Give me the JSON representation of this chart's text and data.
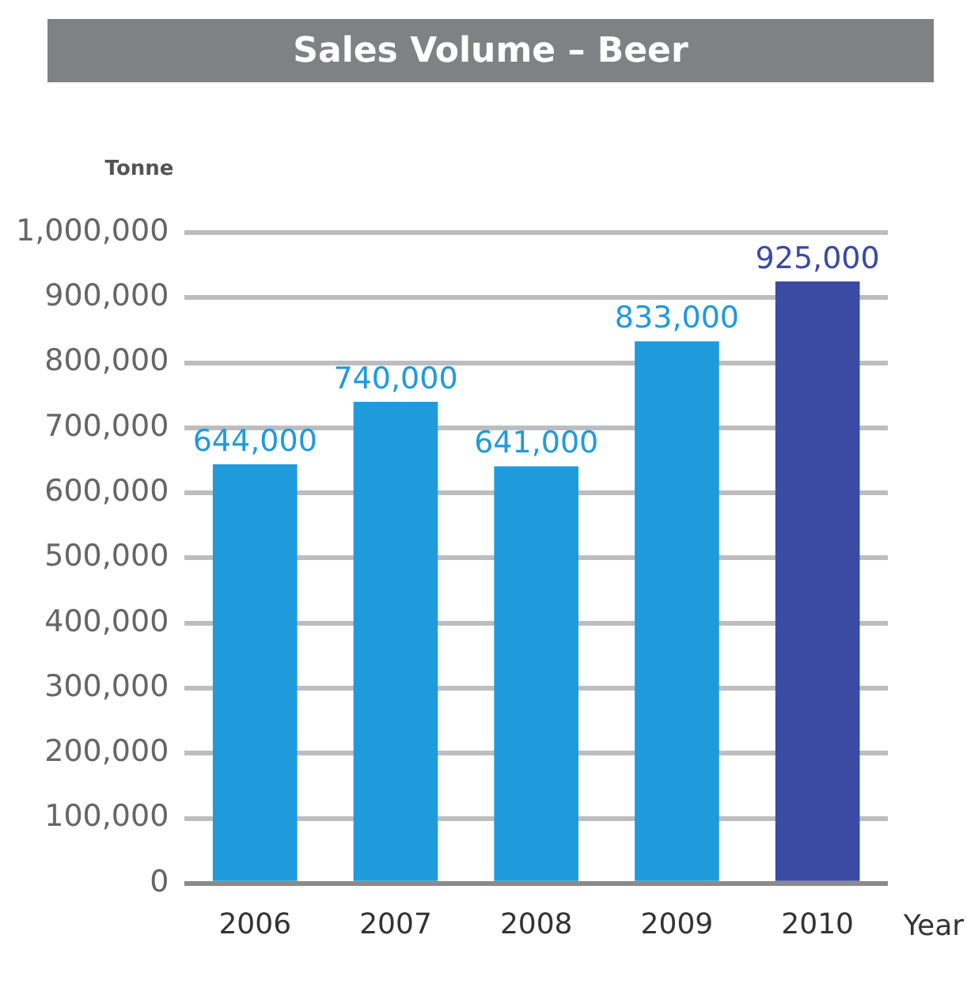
{
  "chart_data": {
    "type": "bar",
    "title": "Sales Volume – Beer",
    "ylabel": "Tonne",
    "xlabel": "Year",
    "categories": [
      "2006",
      "2007",
      "2008",
      "2009",
      "2010"
    ],
    "values": [
      644000,
      740000,
      641000,
      833000,
      925000
    ],
    "colors": [
      "#1f9bdb",
      "#1f9bdb",
      "#1f9bdb",
      "#1f9bdb",
      "#3b4aa3"
    ],
    "ylim": [
      0,
      1000000
    ],
    "yticks": [
      {
        "value": 0,
        "label": "0"
      },
      {
        "value": 100000,
        "label": "100,000"
      },
      {
        "value": 200000,
        "label": "200,000"
      },
      {
        "value": 300000,
        "label": "300,000"
      },
      {
        "value": 400000,
        "label": "400,000"
      },
      {
        "value": 500000,
        "label": "500,000"
      },
      {
        "value": 600000,
        "label": "600,000"
      },
      {
        "value": 700000,
        "label": "700,000"
      },
      {
        "value": 800000,
        "label": "800,000"
      },
      {
        "value": 900000,
        "label": "900,000"
      },
      {
        "value": 1000000,
        "label": "1,000,000"
      }
    ],
    "value_labels": [
      "644,000",
      "740,000",
      "641,000",
      "833,000",
      "925,000"
    ],
    "grid": "y"
  }
}
